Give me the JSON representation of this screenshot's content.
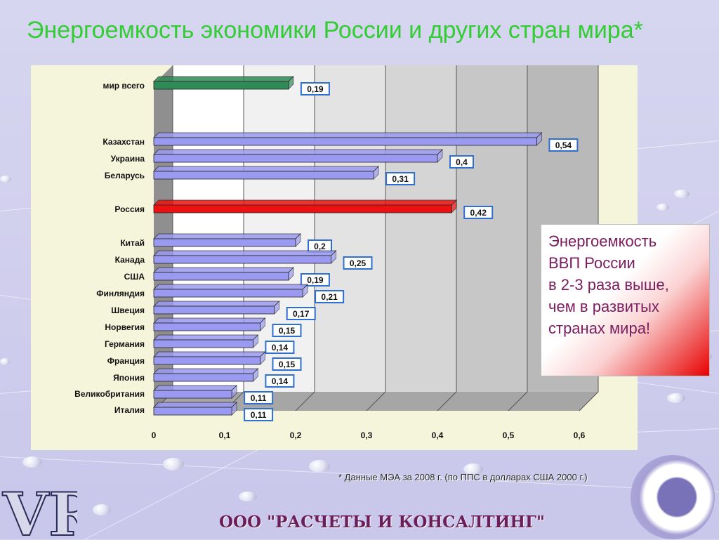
{
  "title": "Энергоемкость экономики России и других стран мира*",
  "chart_data": {
    "type": "bar",
    "orientation": "horizontal",
    "categories": [
      "мир всего",
      "Казахстан",
      "Украина",
      "Беларусь",
      "Россия",
      "Китай",
      "Канада",
      "США",
      "Финляндия",
      "Швеция",
      "Норвегия",
      "Германия",
      "Франция",
      "Япония",
      "Великобритания",
      "Италия"
    ],
    "values": [
      0.19,
      0.54,
      0.4,
      0.31,
      0.42,
      0.2,
      0.25,
      0.19,
      0.21,
      0.17,
      0.15,
      0.14,
      0.15,
      0.14,
      0.11,
      0.11
    ],
    "value_labels": [
      "0,19",
      "0,54",
      "0,4",
      "0,31",
      "0,42",
      "0,2",
      "0,25",
      "0,19",
      "0,21",
      "0,17",
      "0,15",
      "0,14",
      "0,15",
      "0,14",
      "0,11",
      "0,11"
    ],
    "bar_colors": [
      "#2e8b57",
      "#9a9af2",
      "#9a9af2",
      "#9a9af2",
      "#ee1111",
      "#9a9af2",
      "#9a9af2",
      "#9a9af2",
      "#9a9af2",
      "#9a9af2",
      "#9a9af2",
      "#9a9af2",
      "#9a9af2",
      "#9a9af2",
      "#9a9af2",
      "#9a9af2"
    ],
    "xlim": [
      0,
      0.6
    ],
    "xticks": [
      0,
      0.1,
      0.2,
      0.3,
      0.4,
      0.5,
      0.6
    ],
    "xtick_labels": [
      "0",
      "0,1",
      "0,2",
      "0,3",
      "0,4",
      "0,5",
      "0,6"
    ],
    "xlabel": "",
    "ylabel": "",
    "grid": true,
    "legend": "none"
  },
  "callout": {
    "lines": [
      "Энергоемкость",
      "ВВП России",
      "в 2-3 раза выше,",
      "чем в развитых",
      "странах  мира!"
    ]
  },
  "footnote": "* Данные МЭА за 2008 г. (по ППС в долларах США 2000 г.)",
  "company": "ООО \"РАСЧЕТЫ И КОНСАЛТИНГ\"",
  "logo_text": "VR"
}
